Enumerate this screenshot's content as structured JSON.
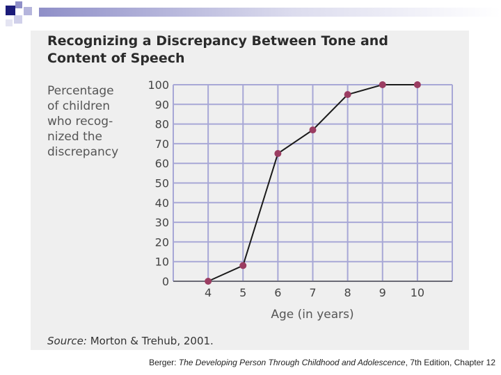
{
  "slide": {
    "footer_prefix": "Berger: ",
    "footer_book": "The Developing Person Through Childhood and Adolescence",
    "footer_suffix": ", 7th Edition, Chapter 12"
  },
  "chart_data": {
    "type": "line",
    "title": "Recognizing a Discrepancy Between Tone and Content of Speech",
    "ylabel": "Percentage\nof children\nwho recog-\nnized the\ndiscrepancy",
    "xlabel": "Age (in years)",
    "x": [
      4,
      5,
      6,
      7,
      8,
      9,
      10
    ],
    "y": [
      0,
      8,
      65,
      77,
      95,
      100,
      100
    ],
    "xlim": [
      3,
      11
    ],
    "ylim": [
      0,
      100
    ],
    "yticks": [
      0,
      10,
      20,
      30,
      40,
      50,
      60,
      70,
      80,
      90,
      100
    ],
    "xticks": [
      4,
      5,
      6,
      7,
      8,
      9,
      10
    ],
    "grid": true,
    "source_label": "Source:",
    "source_text": "Morton & Trehub, 2001.",
    "colors": {
      "line": "#1a1a1a",
      "marker": "#9b3d62",
      "grid": "#a7a7d6",
      "panel": "#efefef"
    }
  }
}
